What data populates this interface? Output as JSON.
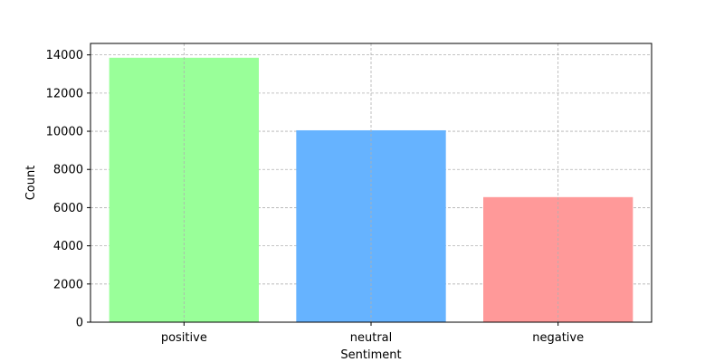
{
  "chart_data": {
    "type": "bar",
    "categories": [
      "positive",
      "neutral",
      "negative"
    ],
    "values": [
      13850,
      10050,
      6550
    ],
    "colors": [
      "#99ff99",
      "#66b3ff",
      "#ff9999"
    ],
    "xlabel": "Sentiment",
    "ylabel": "Count",
    "ylim": [
      0,
      14600
    ],
    "yticks": [
      0,
      2000,
      4000,
      6000,
      8000,
      10000,
      12000,
      14000
    ],
    "grid": true
  }
}
